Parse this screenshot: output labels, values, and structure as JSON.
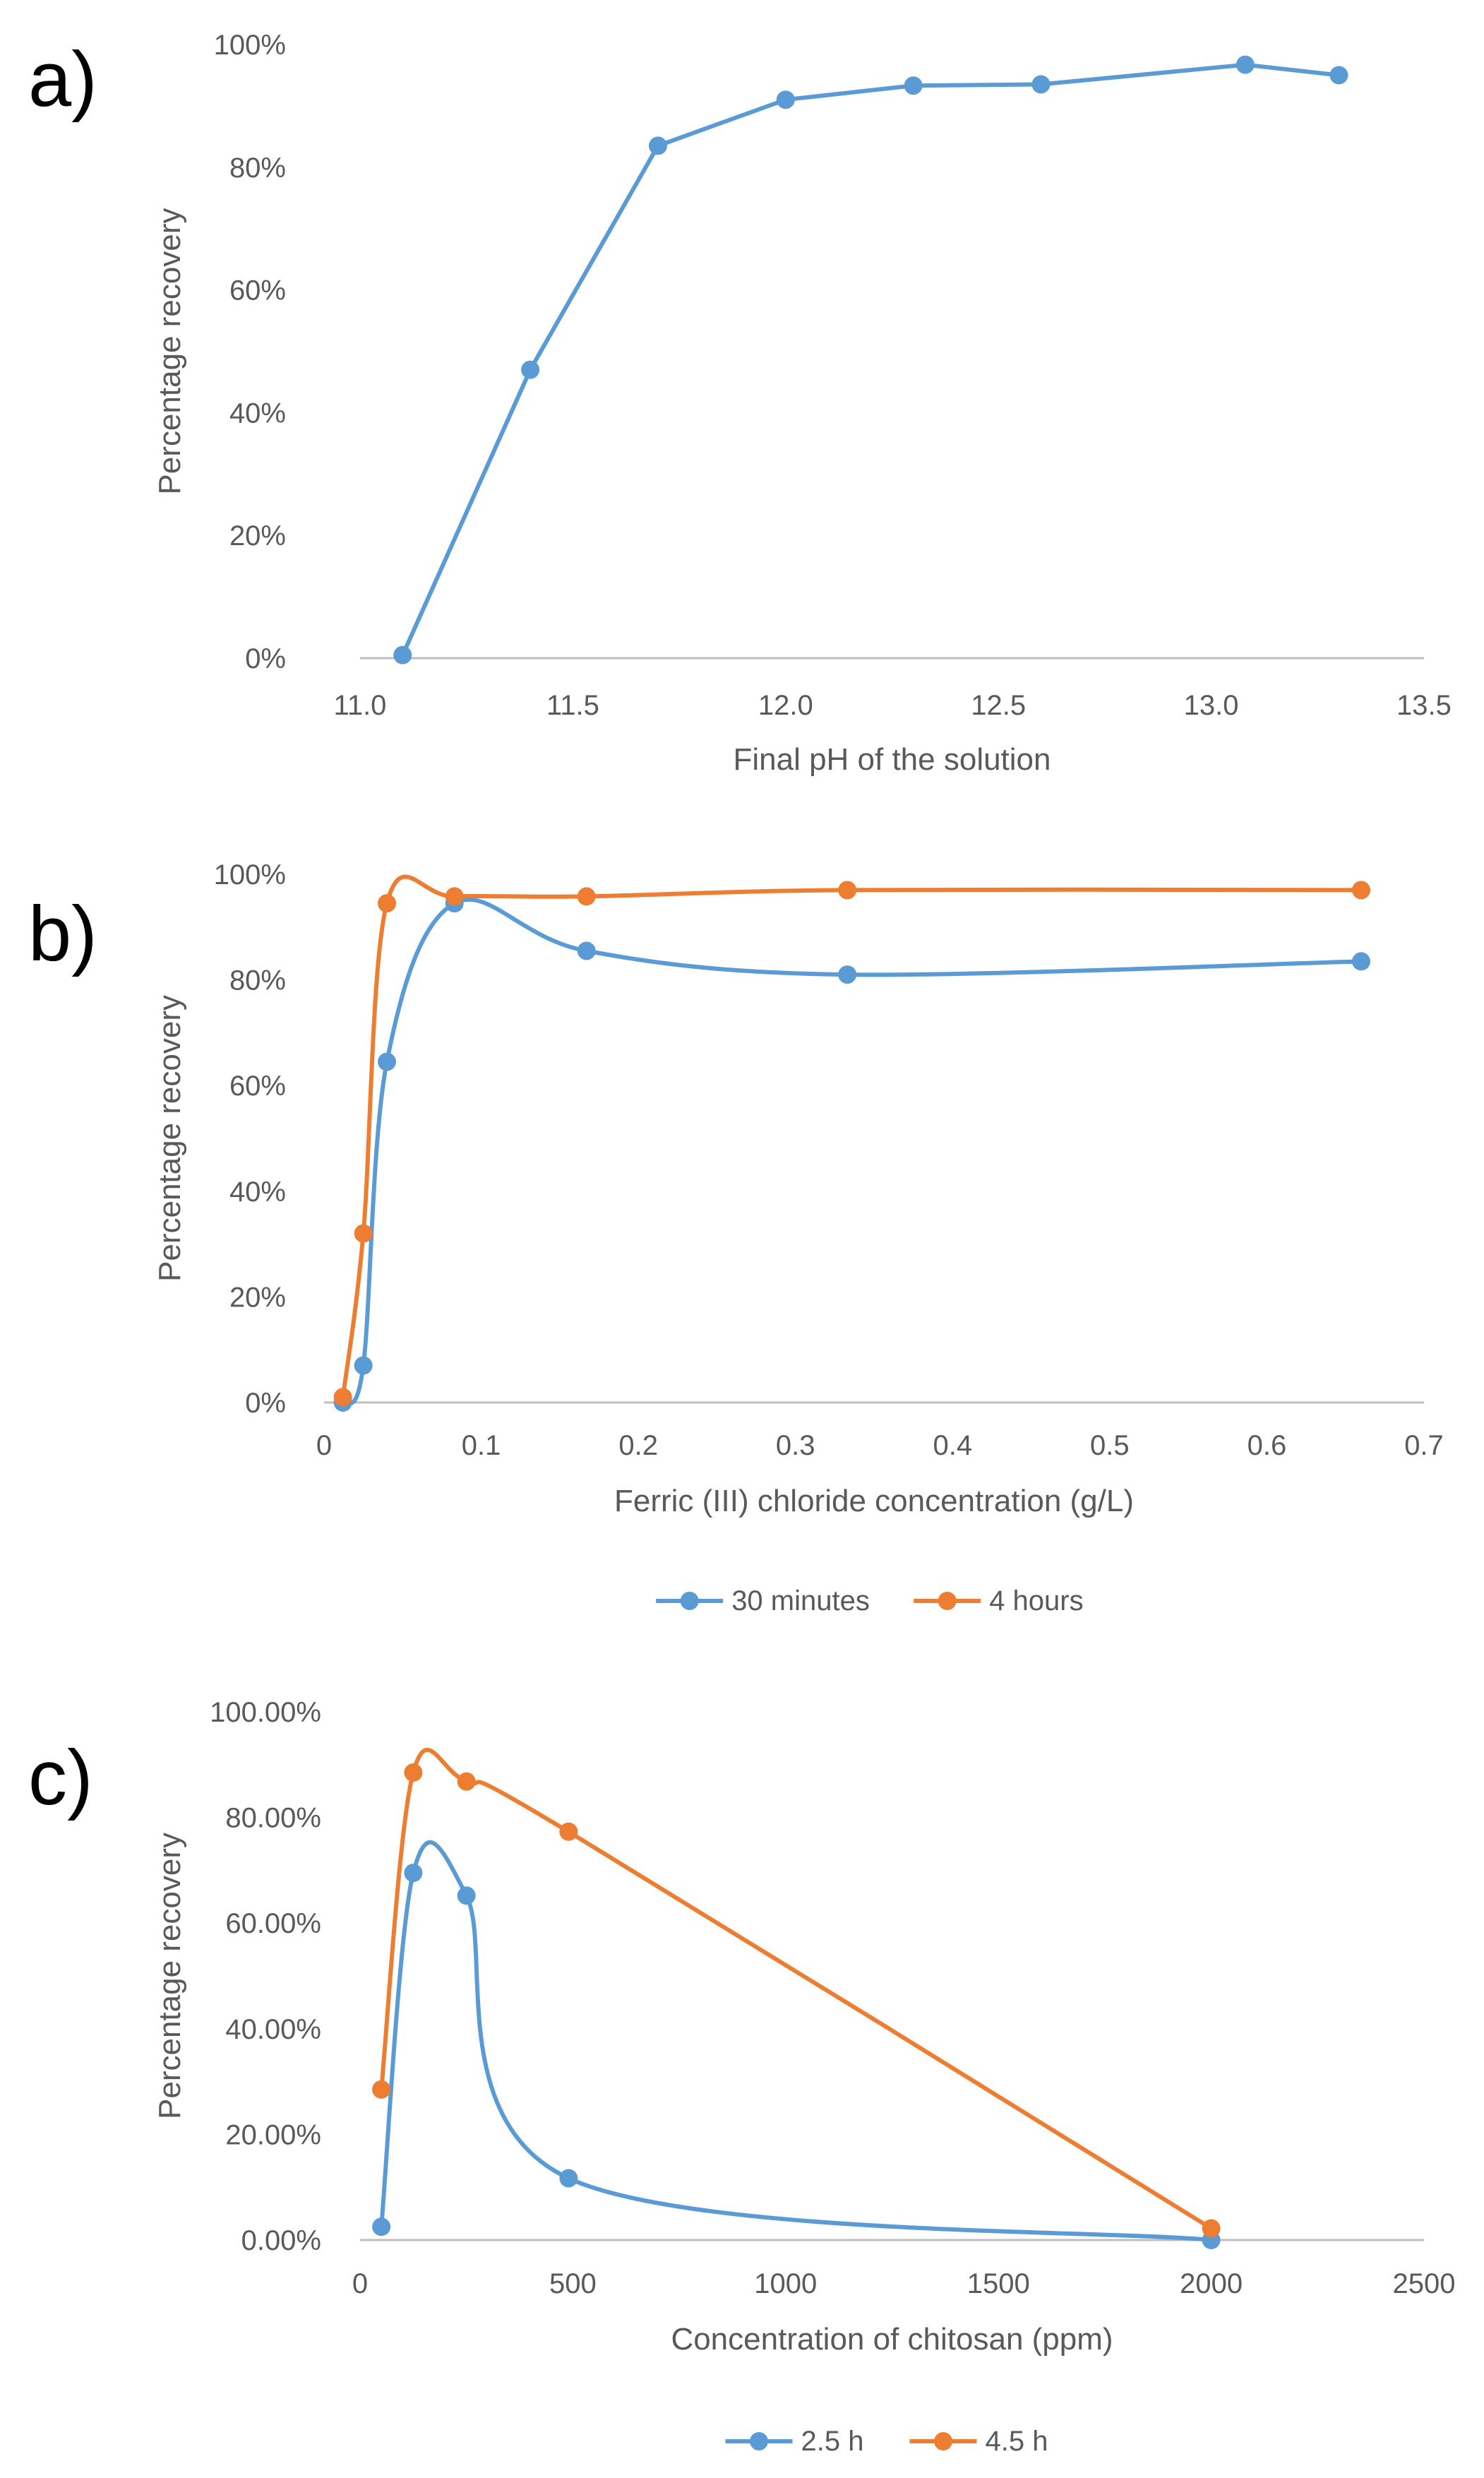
{
  "colors": {
    "blue": "#5B9BD5",
    "orange": "#ED7D31",
    "axis": "#BFBFBF",
    "tick_text": "#595959",
    "panel_label": "#000000"
  },
  "chart_data": [
    {
      "panel": "a)",
      "type": "line",
      "title": "",
      "xlabel": "Final pH of the solution",
      "ylabel": "Percentage recovery",
      "xlim": [
        11.0,
        13.5
      ],
      "ylim": [
        0,
        1
      ],
      "xticks": [
        "11.0",
        "11.5",
        "12.0",
        "12.5",
        "13.0",
        "13.5"
      ],
      "yticks": [
        "0%",
        "20%",
        "40%",
        "60%",
        "80%",
        "100%"
      ],
      "smooth": false,
      "legend": [],
      "series": [
        {
          "name": "",
          "color": "blue",
          "x": [
            11.1,
            11.4,
            11.7,
            12.0,
            12.3,
            12.6,
            13.08,
            13.3
          ],
          "y": [
            0.005,
            0.47,
            0.835,
            0.91,
            0.933,
            0.935,
            0.967,
            0.95
          ]
        }
      ]
    },
    {
      "panel": "b)",
      "type": "line",
      "title": "",
      "xlabel": "Ferric (III) chloride concentration (g/L)",
      "ylabel": "Percentage recovery",
      "xlim": [
        0,
        0.7
      ],
      "ylim": [
        0,
        1
      ],
      "xticks": [
        "0",
        "0.1",
        "0.2",
        "0.3",
        "0.4",
        "0.5",
        "0.6",
        "0.7"
      ],
      "yticks": [
        "0%",
        "20%",
        "40%",
        "60%",
        "80%",
        "100%"
      ],
      "smooth": true,
      "legend": [
        "30 minutes",
        "4 hours"
      ],
      "series": [
        {
          "name": "30 minutes",
          "color": "blue",
          "x": [
            0.012,
            0.025,
            0.04,
            0.083,
            0.167,
            0.333,
            0.66
          ],
          "y": [
            0.0,
            0.07,
            0.645,
            0.945,
            0.855,
            0.81,
            0.835
          ]
        },
        {
          "name": "4 hours",
          "color": "orange",
          "x": [
            0.012,
            0.025,
            0.04,
            0.083,
            0.167,
            0.333,
            0.66
          ],
          "y": [
            0.01,
            0.32,
            0.945,
            0.958,
            0.958,
            0.97,
            0.97
          ]
        }
      ]
    },
    {
      "panel": "c)",
      "type": "line",
      "title": "",
      "xlabel": "Concentration of chitosan (ppm)",
      "ylabel": "Percentage recovery",
      "xlim": [
        0,
        2500
      ],
      "ylim": [
        0,
        1
      ],
      "xticks": [
        "0",
        "500",
        "1000",
        "1500",
        "2000",
        "2500"
      ],
      "yticks": [
        "0.00%",
        "20.00%",
        "40.00%",
        "60.00%",
        "80.00%",
        "100.00%"
      ],
      "smooth": true,
      "legend": [
        "2.5 h",
        "4.5 h"
      ],
      "series": [
        {
          "name": "2.5 h",
          "color": "blue",
          "x": [
            50,
            125,
            250,
            490,
            2000
          ],
          "y": [
            0.025,
            0.695,
            0.652,
            0.117,
            0.0
          ]
        },
        {
          "name": "4.5 h",
          "color": "orange",
          "x": [
            50,
            125,
            250,
            490,
            2000
          ],
          "y": [
            0.285,
            0.885,
            0.868,
            0.773,
            0.022
          ]
        }
      ]
    }
  ]
}
